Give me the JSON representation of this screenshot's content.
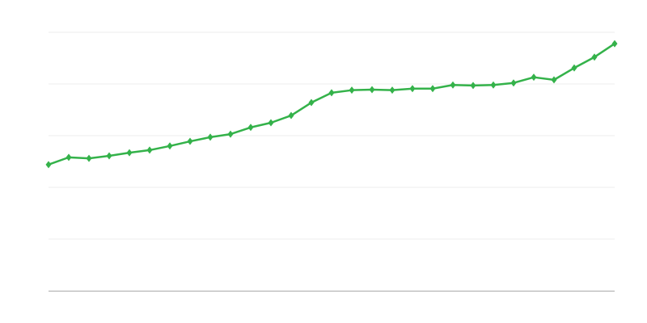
{
  "chart_data": {
    "type": "line",
    "title": "",
    "xlabel": "",
    "ylabel": "",
    "x": [
      0,
      1,
      2,
      3,
      4,
      5,
      6,
      7,
      8,
      9,
      10,
      11,
      12,
      13,
      14,
      15,
      16,
      17,
      18,
      19,
      20,
      21,
      22,
      23,
      24,
      25,
      26,
      27,
      28
    ],
    "series": [
      {
        "values": [
          2.44,
          2.58,
          2.56,
          2.61,
          2.67,
          2.72,
          2.8,
          2.89,
          2.97,
          3.03,
          3.16,
          3.25,
          3.39,
          3.64,
          3.83,
          3.88,
          3.89,
          3.88,
          3.91,
          3.91,
          3.98,
          3.97,
          3.98,
          4.02,
          4.13,
          4.08,
          4.31,
          4.52,
          4.78
        ],
        "color": "#34b24a",
        "marker": "diamond"
      }
    ],
    "xlim": [
      0,
      28
    ],
    "ylim": [
      0,
      5
    ],
    "yticks": [
      0,
      1,
      2,
      3,
      4,
      5
    ],
    "grid": true,
    "axis_color": "#aaaaaa",
    "grid_color": "#eeeeee",
    "legend": "none"
  }
}
